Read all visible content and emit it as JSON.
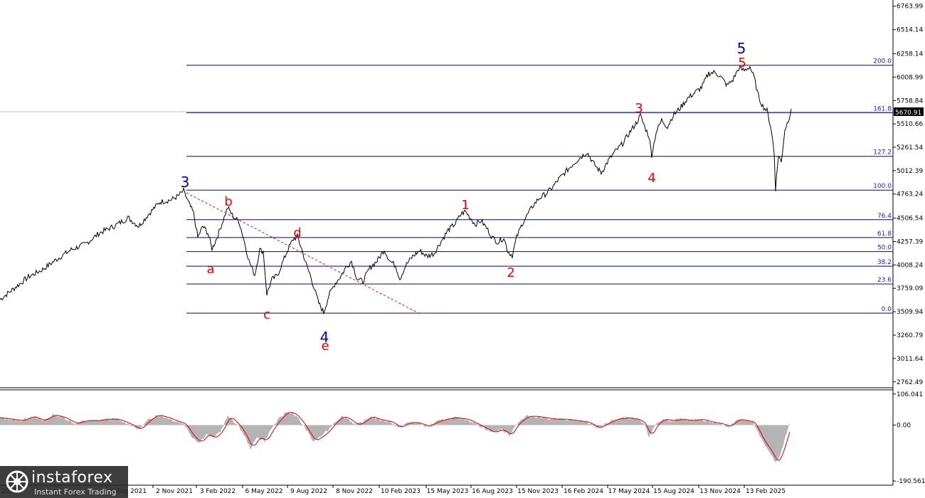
{
  "chart_data": {
    "type": "line",
    "price_axis": {
      "ticks": [
        "6763.99",
        "6514.14",
        "6258.14",
        "6008.99",
        "5758.84",
        "5510.66",
        "5261.54",
        "5012.39",
        "4763.24",
        "4506.54",
        "4257.39",
        "4008.24",
        "3759.09",
        "3509.94",
        "3260.79",
        "3011.64",
        "2762.49"
      ],
      "current_label": "5670.91",
      "ylim": [
        2700,
        6830
      ]
    },
    "oscillator_axis": {
      "ticks": [
        "106.041",
        "0.00",
        "-190.561"
      ],
      "ylim": [
        -200,
        120
      ]
    },
    "time_axis": {
      "ticks": [
        "3 Aug 2021",
        "2 Nov 2021",
        "3 Feb 2022",
        "6 May 2022",
        "9 Aug 2022",
        "8 Nov 2022",
        "10 Feb 2023",
        "15 May 2023",
        "16 Aug 2023",
        "15 Nov 2023",
        "16 Feb 2024",
        "17 May 2024",
        "15 Aug 2024",
        "13 Nov 2024",
        "13 Feb 2025"
      ],
      "left_partial": "2020"
    },
    "fib_levels": [
      {
        "label": "200.0",
        "price": 6135
      },
      {
        "label": "161.8",
        "price": 5630
      },
      {
        "label": "127.2",
        "price": 5165
      },
      {
        "label": "100.0",
        "price": 4805
      },
      {
        "label": "76.4",
        "price": 4490
      },
      {
        "label": "61.8",
        "price": 4300
      },
      {
        "label": "50.0",
        "price": 4150
      },
      {
        "label": "38.2",
        "price": 3995
      },
      {
        "label": "23.6",
        "price": 3805
      },
      {
        "label": "0.0",
        "price": 3495
      }
    ],
    "wave_labels": [
      {
        "text": "3",
        "color": "blue",
        "index": "p3"
      },
      {
        "text": "a",
        "color": "red",
        "index": "pa"
      },
      {
        "text": "b",
        "color": "red",
        "index": "pb"
      },
      {
        "text": "c",
        "color": "red",
        "index": "pc"
      },
      {
        "text": "d",
        "color": "red",
        "index": "pd"
      },
      {
        "text": "e",
        "color": "red",
        "index": "pe"
      },
      {
        "text": "4",
        "color": "blue",
        "index": "p4"
      },
      {
        "text": "1",
        "color": "red",
        "index": "p1"
      },
      {
        "text": "2",
        "color": "red",
        "index": "p2"
      },
      {
        "text": "3",
        "color": "red",
        "index": "pr3"
      },
      {
        "text": "4",
        "color": "red",
        "index": "pr4"
      },
      {
        "text": "5",
        "color": "red",
        "index": "pr5"
      },
      {
        "text": "5",
        "color": "blue",
        "index": "p5"
      }
    ],
    "price_path": [
      [
        0,
        3640
      ],
      [
        20,
        3760
      ],
      [
        40,
        3880
      ],
      [
        60,
        3960
      ],
      [
        80,
        4070
      ],
      [
        100,
        4170
      ],
      [
        120,
        4230
      ],
      [
        140,
        4350
      ],
      [
        160,
        4420
      ],
      [
        180,
        4510
      ],
      [
        195,
        4420
      ],
      [
        210,
        4560
      ],
      [
        225,
        4680
      ],
      [
        240,
        4700
      ],
      [
        250,
        4740
      ],
      [
        258,
        4797
      ],
      [
        265,
        4670
      ],
      [
        272,
        4560
      ],
      [
        278,
        4300
      ],
      [
        285,
        4420
      ],
      [
        292,
        4350
      ],
      [
        298,
        4180
      ],
      [
        305,
        4300
      ],
      [
        312,
        4450
      ],
      [
        320,
        4620
      ],
      [
        328,
        4520
      ],
      [
        336,
        4470
      ],
      [
        342,
        4300
      ],
      [
        350,
        4050
      ],
      [
        358,
        3900
      ],
      [
        365,
        4170
      ],
      [
        370,
        4150
      ],
      [
        375,
        3700
      ],
      [
        382,
        3850
      ],
      [
        390,
        3900
      ],
      [
        398,
        4050
      ],
      [
        405,
        4180
      ],
      [
        412,
        4280
      ],
      [
        418,
        4310
      ],
      [
        424,
        4180
      ],
      [
        430,
        4020
      ],
      [
        436,
        3900
      ],
      [
        442,
        3750
      ],
      [
        448,
        3600
      ],
      [
        455,
        3500
      ],
      [
        462,
        3680
      ],
      [
        470,
        3800
      ],
      [
        478,
        3880
      ],
      [
        486,
        3980
      ],
      [
        494,
        4050
      ],
      [
        502,
        3860
      ],
      [
        510,
        3830
      ],
      [
        520,
        3980
      ],
      [
        530,
        4050
      ],
      [
        540,
        4170
      ],
      [
        548,
        4050
      ],
      [
        556,
        4000
      ],
      [
        562,
        3860
      ],
      [
        570,
        4000
      ],
      [
        580,
        4100
      ],
      [
        590,
        4160
      ],
      [
        600,
        4100
      ],
      [
        610,
        4130
      ],
      [
        620,
        4260
      ],
      [
        630,
        4380
      ],
      [
        640,
        4450
      ],
      [
        648,
        4550
      ],
      [
        654,
        4580
      ],
      [
        660,
        4520
      ],
      [
        668,
        4440
      ],
      [
        676,
        4480
      ],
      [
        684,
        4400
      ],
      [
        692,
        4300
      ],
      [
        700,
        4250
      ],
      [
        708,
        4300
      ],
      [
        714,
        4150
      ],
      [
        720,
        4110
      ],
      [
        726,
        4300
      ],
      [
        734,
        4450
      ],
      [
        742,
        4550
      ],
      [
        750,
        4650
      ],
      [
        758,
        4720
      ],
      [
        766,
        4760
      ],
      [
        775,
        4820
      ],
      [
        785,
        4920
      ],
      [
        795,
        5000
      ],
      [
        805,
        5080
      ],
      [
        815,
        5150
      ],
      [
        825,
        5210
      ],
      [
        835,
        5080
      ],
      [
        845,
        4990
      ],
      [
        855,
        5120
      ],
      [
        865,
        5220
      ],
      [
        875,
        5300
      ],
      [
        885,
        5420
      ],
      [
        895,
        5530
      ],
      [
        900,
        5600
      ],
      [
        906,
        5480
      ],
      [
        912,
        5380
      ],
      [
        916,
        5180
      ],
      [
        922,
        5420
      ],
      [
        930,
        5550
      ],
      [
        938,
        5480
      ],
      [
        946,
        5600
      ],
      [
        956,
        5680
      ],
      [
        966,
        5780
      ],
      [
        976,
        5840
      ],
      [
        986,
        5900
      ],
      [
        996,
        6050
      ],
      [
        1006,
        6060
      ],
      [
        1014,
        6000
      ],
      [
        1022,
        5920
      ],
      [
        1030,
        5980
      ],
      [
        1038,
        6100
      ],
      [
        1046,
        6080
      ],
      [
        1054,
        6120
      ],
      [
        1060,
        6000
      ],
      [
        1066,
        5800
      ],
      [
        1072,
        5700
      ],
      [
        1078,
        5650
      ],
      [
        1084,
        5450
      ],
      [
        1088,
        5200
      ],
      [
        1090,
        4820
      ],
      [
        1094,
        5180
      ],
      [
        1098,
        5100
      ],
      [
        1103,
        5450
      ],
      [
        1108,
        5550
      ],
      [
        1112,
        5670
      ]
    ],
    "osc_path": [
      [
        0,
        25
      ],
      [
        15,
        20
      ],
      [
        30,
        15
      ],
      [
        45,
        30
      ],
      [
        60,
        15
      ],
      [
        75,
        35
      ],
      [
        90,
        25
      ],
      [
        105,
        5
      ],
      [
        120,
        15
      ],
      [
        135,
        15
      ],
      [
        150,
        20
      ],
      [
        165,
        20
      ],
      [
        180,
        5
      ],
      [
        195,
        -15
      ],
      [
        210,
        20
      ],
      [
        220,
        35
      ],
      [
        235,
        25
      ],
      [
        245,
        15
      ],
      [
        258,
        5
      ],
      [
        270,
        -40
      ],
      [
        280,
        -60
      ],
      [
        290,
        -30
      ],
      [
        300,
        -45
      ],
      [
        310,
        -20
      ],
      [
        320,
        30
      ],
      [
        330,
        10
      ],
      [
        340,
        -20
      ],
      [
        352,
        -80
      ],
      [
        362,
        -40
      ],
      [
        372,
        -55
      ],
      [
        382,
        -10
      ],
      [
        392,
        20
      ],
      [
        402,
        45
      ],
      [
        412,
        40
      ],
      [
        420,
        20
      ],
      [
        430,
        -15
      ],
      [
        440,
        -55
      ],
      [
        450,
        -40
      ],
      [
        460,
        -20
      ],
      [
        470,
        10
      ],
      [
        480,
        30
      ],
      [
        490,
        20
      ],
      [
        500,
        0
      ],
      [
        510,
        10
      ],
      [
        520,
        30
      ],
      [
        530,
        20
      ],
      [
        540,
        15
      ],
      [
        550,
        10
      ],
      [
        560,
        -10
      ],
      [
        570,
        5
      ],
      [
        580,
        10
      ],
      [
        590,
        5
      ],
      [
        600,
        -5
      ],
      [
        612,
        10
      ],
      [
        625,
        20
      ],
      [
        640,
        25
      ],
      [
        655,
        20
      ],
      [
        668,
        5
      ],
      [
        680,
        -10
      ],
      [
        692,
        -25
      ],
      [
        705,
        -15
      ],
      [
        716,
        -35
      ],
      [
        726,
        5
      ],
      [
        740,
        30
      ],
      [
        752,
        30
      ],
      [
        765,
        25
      ],
      [
        780,
        20
      ],
      [
        795,
        20
      ],
      [
        810,
        15
      ],
      [
        825,
        10
      ],
      [
        840,
        -10
      ],
      [
        852,
        5
      ],
      [
        865,
        20
      ],
      [
        880,
        25
      ],
      [
        895,
        20
      ],
      [
        905,
        5
      ],
      [
        912,
        -40
      ],
      [
        922,
        5
      ],
      [
        932,
        20
      ],
      [
        945,
        15
      ],
      [
        958,
        20
      ],
      [
        970,
        15
      ],
      [
        985,
        20
      ],
      [
        1000,
        10
      ],
      [
        1012,
        5
      ],
      [
        1024,
        -5
      ],
      [
        1036,
        20
      ],
      [
        1048,
        15
      ],
      [
        1058,
        10
      ],
      [
        1066,
        -30
      ],
      [
        1074,
        -65
      ],
      [
        1082,
        -90
      ],
      [
        1090,
        -130
      ],
      [
        1097,
        -100
      ],
      [
        1104,
        -40
      ],
      [
        1110,
        10
      ]
    ]
  },
  "watermark": {
    "brand": "instaforex",
    "tagline": "Instant Forex Trading"
  }
}
